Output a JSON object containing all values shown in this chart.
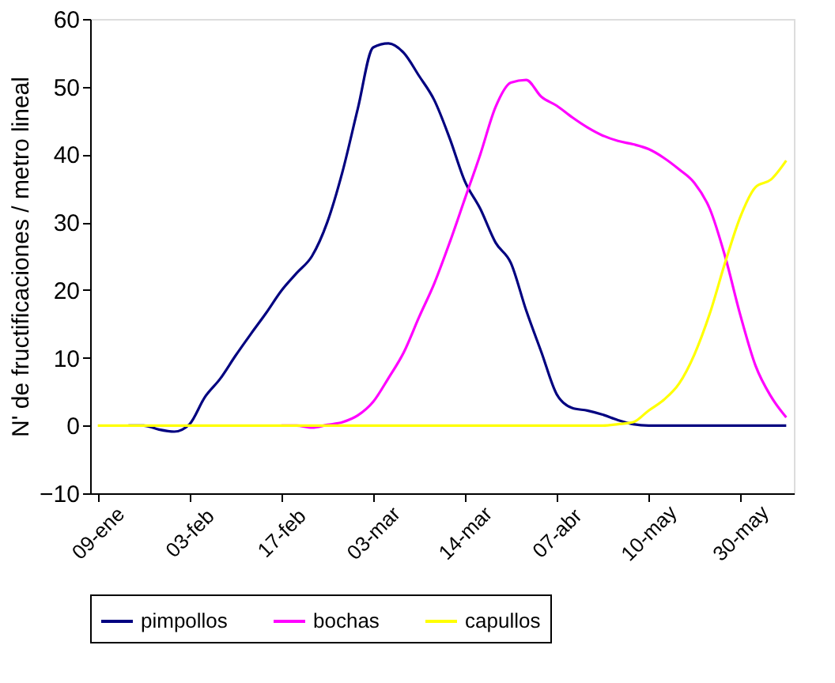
{
  "chart_data": {
    "type": "line",
    "ylabel": "N' de fructificaciones / metro lineal",
    "categories": [
      "09-ene",
      null,
      null,
      null,
      null,
      null,
      "03-feb",
      null,
      null,
      null,
      null,
      null,
      "17-feb",
      null,
      null,
      null,
      null,
      null,
      "03-mar",
      null,
      null,
      null,
      null,
      null,
      "14-mar",
      null,
      null,
      null,
      null,
      null,
      "07-abr",
      null,
      null,
      null,
      null,
      null,
      "10-may",
      null,
      null,
      null,
      null,
      null,
      "30-may",
      null,
      null,
      null
    ],
    "series": [
      {
        "name": "pimpollos",
        "color": "#000080",
        "values": [
          null,
          null,
          0,
          0,
          -0.6,
          -0.9,
          0.2,
          4.2,
          6.9,
          10.3,
          13.5,
          16.6,
          19.9,
          22.5,
          25,
          30,
          37.5,
          46.8,
          55.8,
          56.4,
          55,
          51.6,
          48,
          42.4,
          36,
          32,
          27,
          24,
          17,
          10.8,
          4.6,
          2.6,
          2.2,
          1.6,
          0.8,
          0.2,
          0,
          0,
          0,
          0,
          0,
          0,
          0,
          0,
          0,
          0
        ]
      },
      {
        "name": "bochas",
        "color": "#ff00ff",
        "values": [
          null,
          null,
          null,
          null,
          null,
          null,
          null,
          null,
          null,
          null,
          null,
          null,
          0,
          0,
          -0.3,
          0.1,
          0.5,
          1.5,
          3.5,
          7,
          10.8,
          16,
          21,
          27,
          33.5,
          40,
          47,
          50.6,
          51,
          48.5,
          47.2,
          45.5,
          44,
          42.8,
          42,
          41.5,
          40.8,
          39.5,
          37.8,
          35.8,
          32,
          25,
          16.3,
          8.8,
          4.3,
          1.2
        ]
      },
      {
        "name": "capullos",
        "color": "#ffff00",
        "values": [
          0,
          0,
          0,
          0,
          0,
          0,
          0,
          0,
          0,
          0,
          0,
          0,
          0,
          0,
          0,
          0,
          0,
          0,
          0,
          0,
          0,
          0,
          0,
          0,
          0,
          0,
          0,
          0,
          0,
          0,
          0,
          0,
          0,
          0,
          0.2,
          0.5,
          2.2,
          3.8,
          6.2,
          10.5,
          16.5,
          24,
          30.8,
          35.2,
          36.3,
          39.1
        ]
      }
    ],
    "ylim": [
      -10,
      60
    ],
    "yticks": [
      -10,
      0,
      10,
      20,
      30,
      40,
      50,
      60
    ],
    "grid": false,
    "legend": "bottom",
    "marker": "none",
    "line_style": "solid"
  }
}
